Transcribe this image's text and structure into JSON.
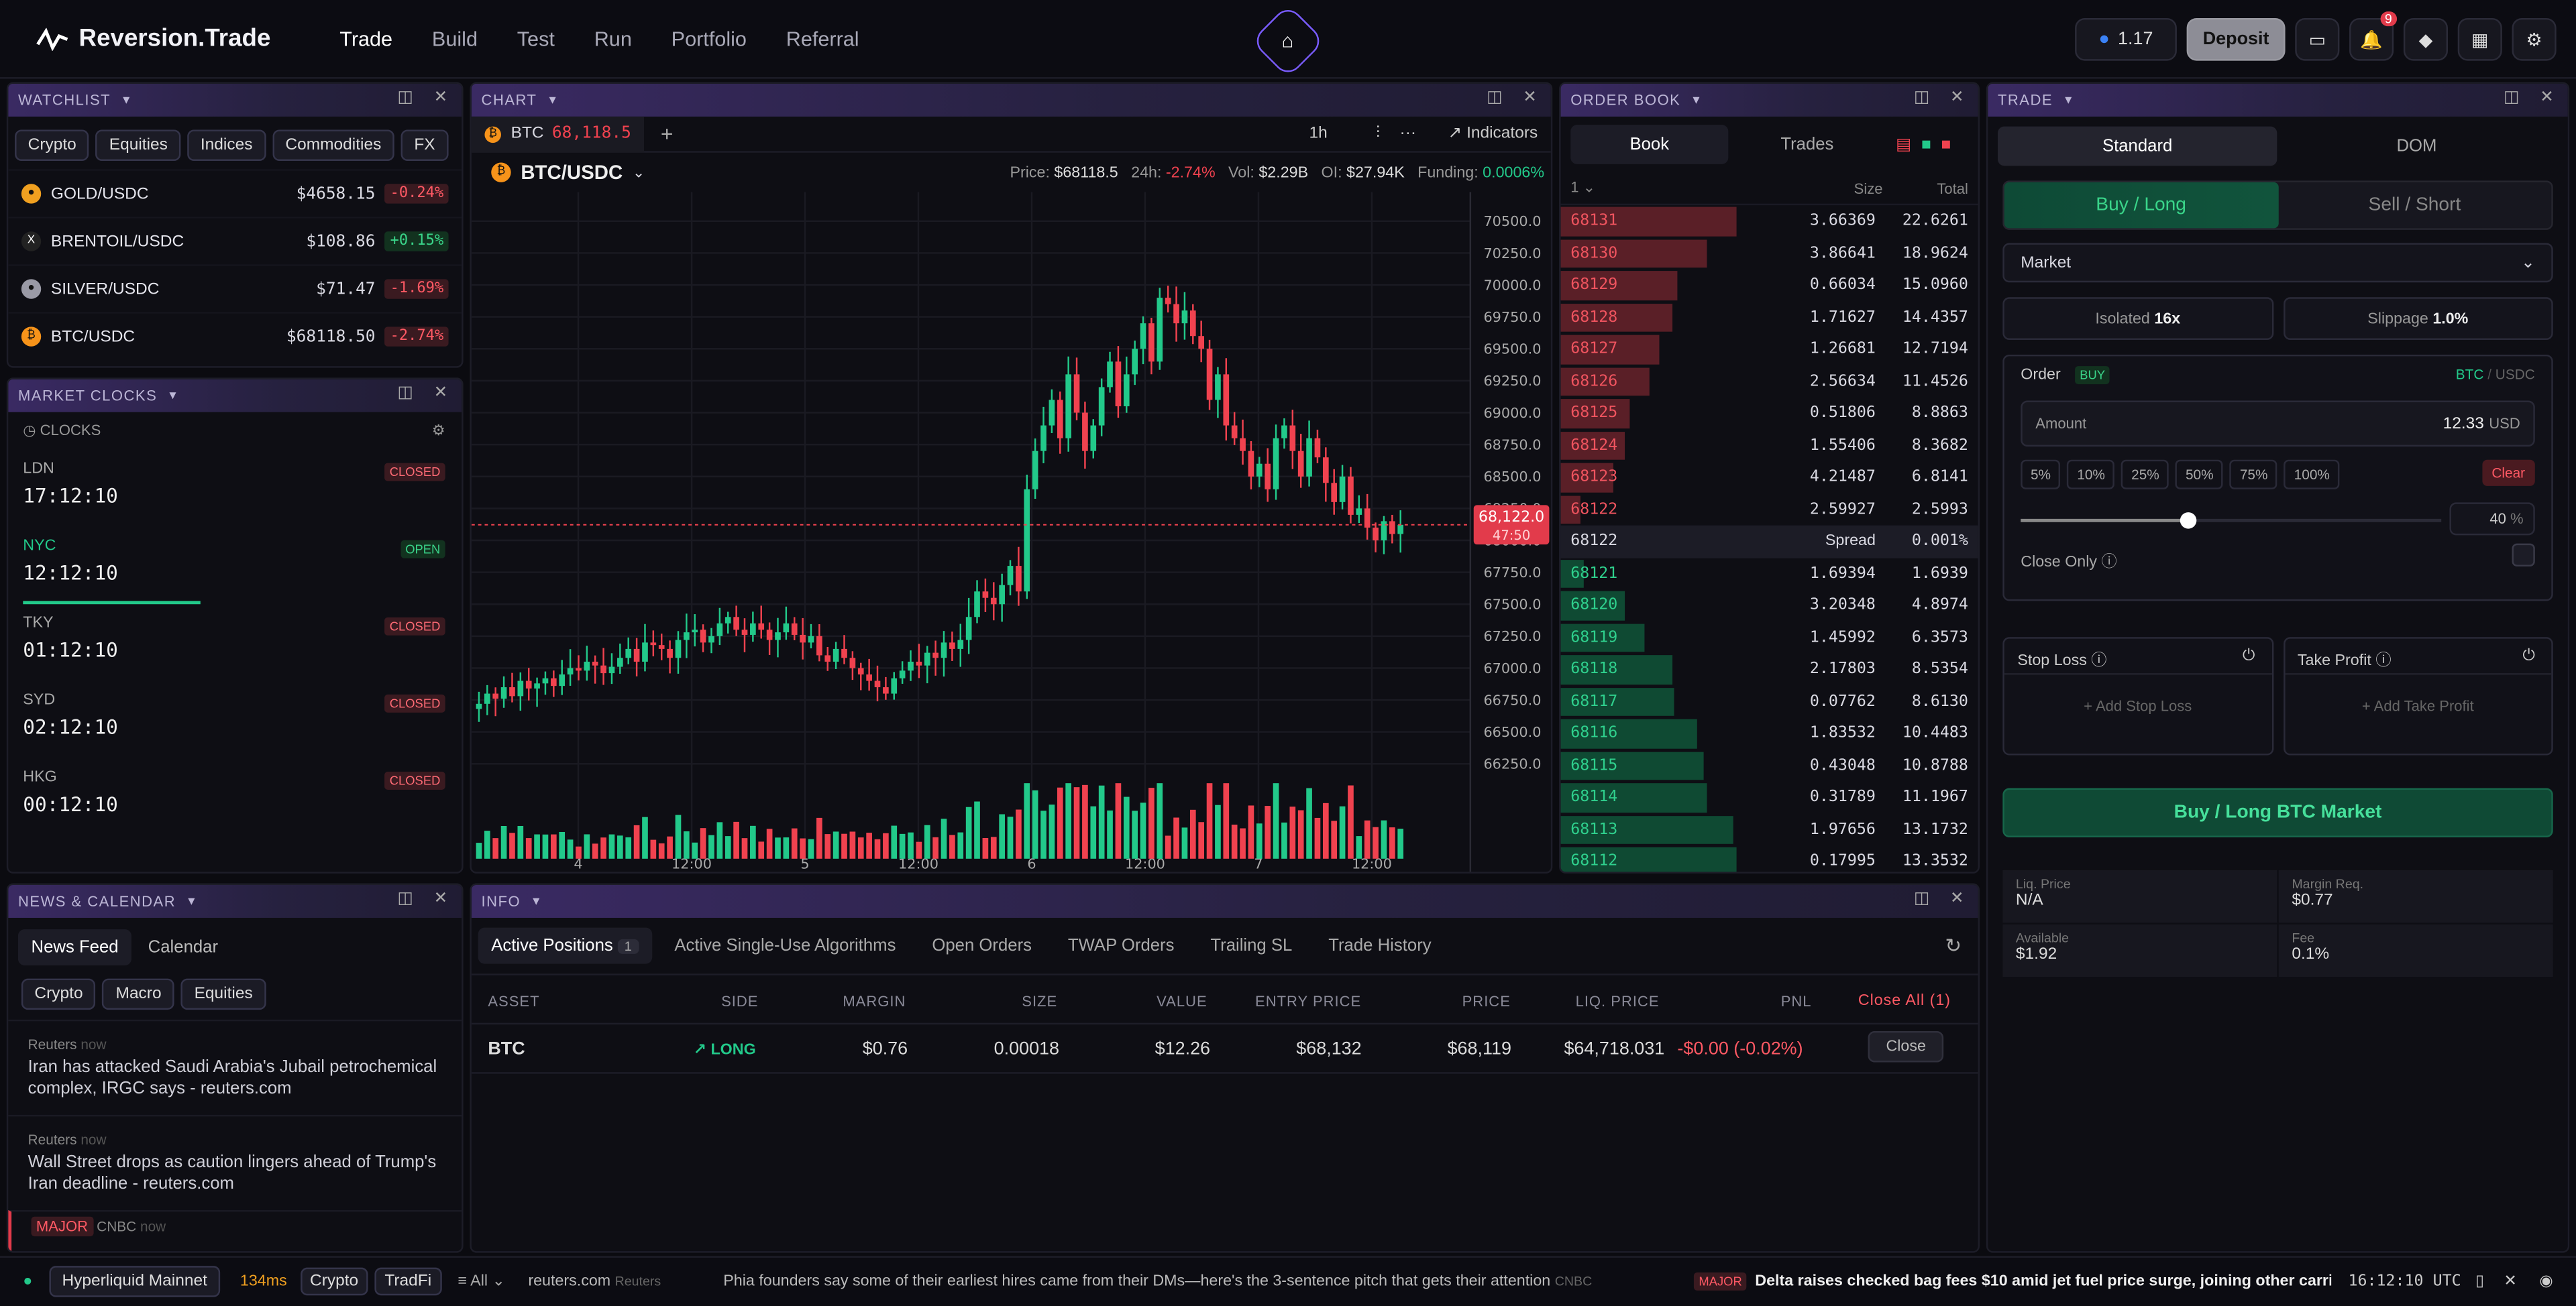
{
  "app": {
    "name": "Reversion.Trade",
    "nav": [
      "Trade",
      "Build",
      "Test",
      "Run",
      "Portfolio",
      "Referral"
    ],
    "balance": "1.17",
    "deposit": "Deposit",
    "notif_count": "9"
  },
  "watchlist": {
    "title": "WATCHLIST",
    "filters": [
      "Crypto",
      "Equities",
      "Indices",
      "Commodities",
      "FX"
    ],
    "rows": [
      {
        "sym": "GOLD/USDC",
        "price": "$4658.15",
        "chg": "-0.24%",
        "up": false,
        "color": "#f0a020",
        "g": "●"
      },
      {
        "sym": "BRENTOIL/USDC",
        "price": "$108.86",
        "chg": "+0.15%",
        "up": true,
        "color": "#222",
        "g": "X"
      },
      {
        "sym": "SILVER/USDC",
        "price": "$71.47",
        "chg": "-1.69%",
        "up": false,
        "color": "#9a9aa6",
        "g": "●"
      },
      {
        "sym": "BTC/USDC",
        "price": "$68118.50",
        "chg": "-2.74%",
        "up": false,
        "color": "#f7931a",
        "g": "₿"
      }
    ]
  },
  "clocks": {
    "title": "MARKET CLOCKS",
    "label": "CLOCKS",
    "items": [
      {
        "city": "LDN",
        "time": "17:12:10",
        "status": "CLOSED",
        "open": false
      },
      {
        "city": "NYC",
        "time": "12:12:10",
        "status": "OPEN",
        "open": true
      },
      {
        "city": "TKY",
        "time": "01:12:10",
        "status": "CLOSED",
        "open": false
      },
      {
        "city": "SYD",
        "time": "02:12:10",
        "status": "CLOSED",
        "open": false
      },
      {
        "city": "HKG",
        "time": "00:12:10",
        "status": "CLOSED",
        "open": false
      }
    ]
  },
  "news": {
    "title": "NEWS & CALENDAR",
    "tabs": [
      "News Feed",
      "Calendar"
    ],
    "filters": [
      "Crypto",
      "Macro",
      "Equities"
    ],
    "items": [
      {
        "src": "Reuters",
        "ago": "now",
        "text": "Iran has attacked Saudi Arabia's Jubail petrochemical complex, IRGC says - reuters.com"
      },
      {
        "src": "Reuters",
        "ago": "now",
        "text": "Wall Street drops as caution lingers ahead of Trump's Iran deadline - reuters.com"
      },
      {
        "src": "CNBC",
        "ago": "now",
        "text": "MAJOR"
      }
    ]
  },
  "chart": {
    "title": "CHART",
    "tab_sym": "BTC",
    "tab_price": "68,118.5",
    "pair": "BTC/USDC",
    "interval": "1h",
    "indicators": "Indicators",
    "stats": {
      "price_l": "Price:",
      "price": "$68118.5",
      "chg_l": "24h:",
      "chg": "-2.74%",
      "vol_l": "Vol:",
      "vol": "$2.29B",
      "oi_l": "OI:",
      "oi": "$27.94K",
      "fund_l": "Funding:",
      "fund": "0.0006%"
    },
    "last_price": "68,122.0",
    "countdown": "47:50"
  },
  "chart_data": {
    "type": "candlestick",
    "x_ticks": [
      "4",
      "12:00",
      "5",
      "12:00",
      "6",
      "12:00",
      "7",
      "12:00"
    ],
    "y_ticks": [
      "70500.0",
      "70250.0",
      "70000.0",
      "69750.0",
      "69500.0",
      "69250.0",
      "69000.0",
      "68750.0",
      "68500.0",
      "68250.0",
      "68000.0",
      "67750.0",
      "67500.0",
      "67250.0",
      "67000.0",
      "66750.0",
      "66500.0",
      "66250.0"
    ],
    "ylim": [
      66150,
      70650
    ],
    "closes": [
      66720,
      66800,
      66760,
      66850,
      66780,
      66900,
      66840,
      66880,
      66920,
      66860,
      66950,
      67000,
      66980,
      67050,
      67020,
      66960,
      67010,
      67080,
      67150,
      67050,
      67200,
      67180,
      67150,
      67080,
      67220,
      67280,
      67300,
      67200,
      67250,
      67350,
      67400,
      67300,
      67260,
      67350,
      67300,
      67220,
      67280,
      67350,
      67260,
      67200,
      67250,
      67100,
      67050,
      67150,
      67080,
      67000,
      66950,
      66900,
      66850,
      66800,
      66920,
      66980,
      67050,
      67020,
      67120,
      67080,
      67200,
      67150,
      67220,
      67400,
      67600,
      67550,
      67500,
      67650,
      67800,
      67600,
      68400,
      68700,
      68900,
      69100,
      68800,
      69300,
      69000,
      68700,
      68900,
      69200,
      69400,
      69050,
      69300,
      69500,
      69700,
      69400,
      69900,
      69850,
      69700,
      69800,
      69600,
      69500,
      69100,
      69300,
      68900,
      68800,
      68700,
      68500,
      68600,
      68400,
      68800,
      68900,
      68700,
      68500,
      68800,
      68650,
      68450,
      68300,
      68500,
      68200,
      68250,
      68100,
      68000,
      68150,
      68050,
      68122
    ],
    "volume_note": "volume bars under candles"
  },
  "orderbook": {
    "title": "ORDER BOOK",
    "tabs": [
      "Book",
      "Trades"
    ],
    "group": "1",
    "cols": [
      "Size",
      "Total"
    ],
    "asks": [
      [
        "68131",
        "3.66369",
        "22.6261"
      ],
      [
        "68130",
        "3.86641",
        "18.9624"
      ],
      [
        "68129",
        "0.66034",
        "15.0960"
      ],
      [
        "68128",
        "1.71627",
        "14.4357"
      ],
      [
        "68127",
        "1.26681",
        "12.7194"
      ],
      [
        "68126",
        "2.56634",
        "11.4526"
      ],
      [
        "68125",
        "0.51806",
        "8.8863"
      ],
      [
        "68124",
        "1.55406",
        "8.3682"
      ],
      [
        "68123",
        "4.21487",
        "6.8141"
      ],
      [
        "68122",
        "2.59927",
        "2.5993"
      ]
    ],
    "spread": [
      "68122",
      "Spread",
      "0.001%"
    ],
    "bids": [
      [
        "68121",
        "1.69394",
        "1.6939"
      ],
      [
        "68120",
        "3.20348",
        "4.8974"
      ],
      [
        "68119",
        "1.45992",
        "6.3573"
      ],
      [
        "68118",
        "2.17803",
        "8.5354"
      ],
      [
        "68117",
        "0.07762",
        "8.6130"
      ],
      [
        "68116",
        "1.83532",
        "10.4483"
      ],
      [
        "68115",
        "0.43048",
        "10.8788"
      ],
      [
        "68114",
        "0.31789",
        "11.1967"
      ],
      [
        "68113",
        "1.97656",
        "13.1732"
      ],
      [
        "68112",
        "0.17995",
        "13.3532"
      ]
    ]
  },
  "trade": {
    "title": "TRADE",
    "tabs": [
      "Standard",
      "DOM"
    ],
    "buy": "Buy / Long",
    "sell": "Sell / Short",
    "order_type": "Market",
    "isolated_l": "Isolated",
    "isolated": "16x",
    "slippage_l": "Slippage",
    "slippage": "1.0%",
    "order_l": "Order",
    "order_badge": "BUY",
    "pair_a": "BTC",
    "pair_b": "USDC",
    "amount_l": "Amount",
    "amount": "12.33",
    "amount_u": "USD",
    "pcts": [
      "5%",
      "10%",
      "25%",
      "50%",
      "75%",
      "100%"
    ],
    "clear": "Clear",
    "slider": "40",
    "slider_u": "%",
    "close_only": "Close Only",
    "sl": "Stop Loss",
    "tp": "Take Profit",
    "add_sl": "+ Add Stop Loss",
    "add_tp": "+ Add Take Profit",
    "submit": "Buy / Long BTC Market",
    "liq_l": "Liq. Price",
    "liq": "N/A",
    "margin_l": "Margin Req.",
    "margin": "$0.77",
    "avail_l": "Available",
    "avail": "$1.92",
    "fee_l": "Fee",
    "fee": "0.1%"
  },
  "info": {
    "title": "INFO",
    "tabs": [
      "Active Positions",
      "Active Single-Use Algorithms",
      "Open Orders",
      "TWAP Orders",
      "Trailing SL",
      "Trade History"
    ],
    "count": "1",
    "cols": [
      "ASSET",
      "SIDE",
      "MARGIN",
      "SIZE",
      "VALUE",
      "ENTRY PRICE",
      "PRICE",
      "LIQ. PRICE",
      "PNL"
    ],
    "close_all": "Close All (1)",
    "row": {
      "asset": "BTC",
      "side": "LONG",
      "margin": "$0.76",
      "size": "0.00018",
      "value": "$12.26",
      "entry": "$68,132",
      "price": "$68,119",
      "liq": "$64,718.031",
      "pnl": "-$0.00 (-0.02%)",
      "close": "Close"
    }
  },
  "footer": {
    "network": "Hyperliquid Mainnet",
    "latency": "134ms",
    "chips": [
      "Crypto",
      "TradFi"
    ],
    "all": "All",
    "src1": "reuters.com",
    "src1b": "Reuters",
    "t1": "Phia founders say some of their earliest hires came from their DMs—here's the 3-sentence pitch that gets their attention",
    "t1s": "CNBC",
    "major": "MAJOR",
    "t2": "Delta raises checked bag fees $10 amid jet fuel price surge, joining other carri",
    "time": "16:12:10 UTC"
  },
  "colors": {
    "up": "#22c98a",
    "down": "#f0424f",
    "accent": "#7a5cff"
  }
}
